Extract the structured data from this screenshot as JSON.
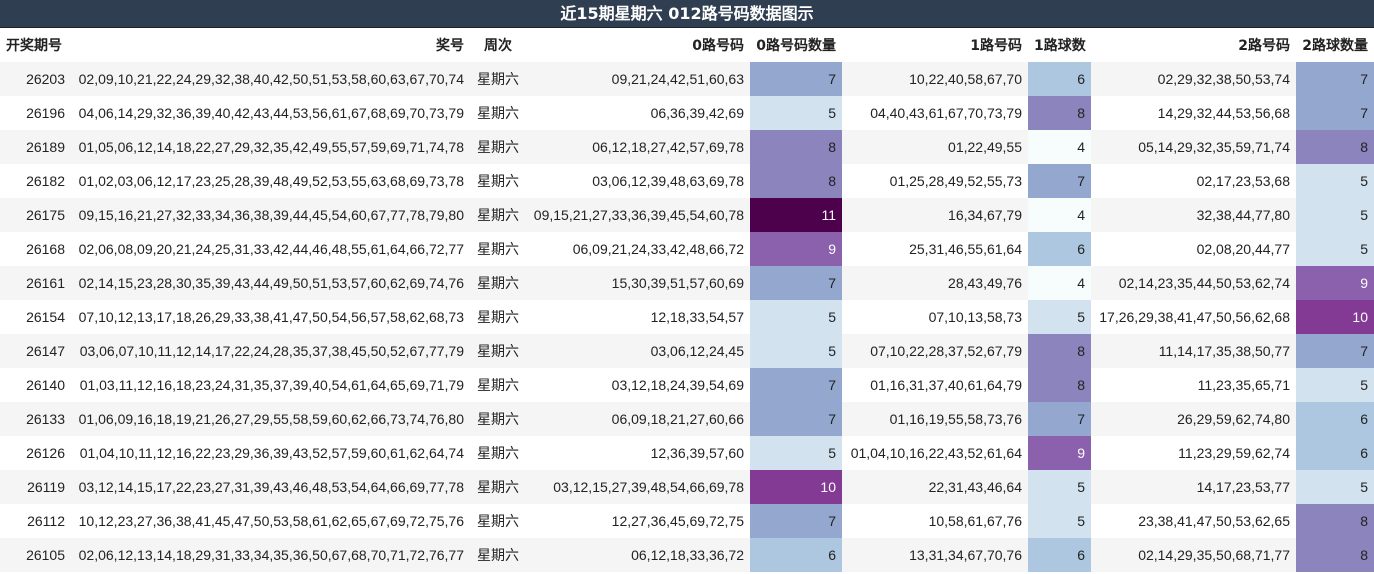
{
  "title": "近15期星期六 012路号码数据图示",
  "chart_data": {
    "type": "table",
    "title": "近15期星期六 012路号码数据图示",
    "columns": [
      "开奖期号",
      "奖号",
      "周次",
      "0路号码",
      "0路号码数量",
      "1路号码",
      "1路球数",
      "2路号码",
      "2路球数量"
    ],
    "color_scale": {
      "min": 4,
      "max": 11,
      "low_color": "#f7fcfd",
      "high_color": "#4d004b"
    },
    "rows": [
      {
        "issue": "26203",
        "numbers": "02,09,10,21,22,24,29,32,38,40,42,50,51,53,58,60,63,67,70,74",
        "weekday": "星期六",
        "r0": "09,21,24,42,51,60,63",
        "r0_count": 7,
        "r1": "10,22,40,58,67,70",
        "r1_count": 6,
        "r2": "02,29,32,38,50,53,74",
        "r2_count": 7
      },
      {
        "issue": "26196",
        "numbers": "04,06,14,29,32,36,39,40,42,43,44,53,56,61,67,68,69,70,73,79",
        "weekday": "星期六",
        "r0": "06,36,39,42,69",
        "r0_count": 5,
        "r1": "04,40,43,61,67,70,73,79",
        "r1_count": 8,
        "r2": "14,29,32,44,53,56,68",
        "r2_count": 7
      },
      {
        "issue": "26189",
        "numbers": "01,05,06,12,14,18,22,27,29,32,35,42,49,55,57,59,69,71,74,78",
        "weekday": "星期六",
        "r0": "06,12,18,27,42,57,69,78",
        "r0_count": 8,
        "r1": "01,22,49,55",
        "r1_count": 4,
        "r2": "05,14,29,32,35,59,71,74",
        "r2_count": 8
      },
      {
        "issue": "26182",
        "numbers": "01,02,03,06,12,17,23,25,28,39,48,49,52,53,55,63,68,69,73,78",
        "weekday": "星期六",
        "r0": "03,06,12,39,48,63,69,78",
        "r0_count": 8,
        "r1": "01,25,28,49,52,55,73",
        "r1_count": 7,
        "r2": "02,17,23,53,68",
        "r2_count": 5
      },
      {
        "issue": "26175",
        "numbers": "09,15,16,21,27,32,33,34,36,38,39,44,45,54,60,67,77,78,79,80",
        "weekday": "星期六",
        "r0": "09,15,21,27,33,36,39,45,54,60,78",
        "r0_count": 11,
        "r1": "16,34,67,79",
        "r1_count": 4,
        "r2": "32,38,44,77,80",
        "r2_count": 5
      },
      {
        "issue": "26168",
        "numbers": "02,06,08,09,20,21,24,25,31,33,42,44,46,48,55,61,64,66,72,77",
        "weekday": "星期六",
        "r0": "06,09,21,24,33,42,48,66,72",
        "r0_count": 9,
        "r1": "25,31,46,55,61,64",
        "r1_count": 6,
        "r2": "02,08,20,44,77",
        "r2_count": 5
      },
      {
        "issue": "26161",
        "numbers": "02,14,15,23,28,30,35,39,43,44,49,50,51,53,57,60,62,69,74,76",
        "weekday": "星期六",
        "r0": "15,30,39,51,57,60,69",
        "r0_count": 7,
        "r1": "28,43,49,76",
        "r1_count": 4,
        "r2": "02,14,23,35,44,50,53,62,74",
        "r2_count": 9
      },
      {
        "issue": "26154",
        "numbers": "07,10,12,13,17,18,26,29,33,38,41,47,50,54,56,57,58,62,68,73",
        "weekday": "星期六",
        "r0": "12,18,33,54,57",
        "r0_count": 5,
        "r1": "07,10,13,58,73",
        "r1_count": 5,
        "r2": "17,26,29,38,41,47,50,56,62,68",
        "r2_count": 10
      },
      {
        "issue": "26147",
        "numbers": "03,06,07,10,11,12,14,17,22,24,28,35,37,38,45,50,52,67,77,79",
        "weekday": "星期六",
        "r0": "03,06,12,24,45",
        "r0_count": 5,
        "r1": "07,10,22,28,37,52,67,79",
        "r1_count": 8,
        "r2": "11,14,17,35,38,50,77",
        "r2_count": 7
      },
      {
        "issue": "26140",
        "numbers": "01,03,11,12,16,18,23,24,31,35,37,39,40,54,61,64,65,69,71,79",
        "weekday": "星期六",
        "r0": "03,12,18,24,39,54,69",
        "r0_count": 7,
        "r1": "01,16,31,37,40,61,64,79",
        "r1_count": 8,
        "r2": "11,23,35,65,71",
        "r2_count": 5
      },
      {
        "issue": "26133",
        "numbers": "01,06,09,16,18,19,21,26,27,29,55,58,59,60,62,66,73,74,76,80",
        "weekday": "星期六",
        "r0": "06,09,18,21,27,60,66",
        "r0_count": 7,
        "r1": "01,16,19,55,58,73,76",
        "r1_count": 7,
        "r2": "26,29,59,62,74,80",
        "r2_count": 6
      },
      {
        "issue": "26126",
        "numbers": "01,04,10,11,12,16,22,23,29,36,39,43,52,57,59,60,61,62,64,74",
        "weekday": "星期六",
        "r0": "12,36,39,57,60",
        "r0_count": 5,
        "r1": "01,04,10,16,22,43,52,61,64",
        "r1_count": 9,
        "r2": "11,23,29,59,62,74",
        "r2_count": 6
      },
      {
        "issue": "26119",
        "numbers": "03,12,14,15,17,22,23,27,31,39,43,46,48,53,54,64,66,69,77,78",
        "weekday": "星期六",
        "r0": "03,12,15,27,39,48,54,66,69,78",
        "r0_count": 10,
        "r1": "22,31,43,46,64",
        "r1_count": 5,
        "r2": "14,17,23,53,77",
        "r2_count": 5
      },
      {
        "issue": "26112",
        "numbers": "10,12,23,27,36,38,41,45,47,50,53,58,61,62,65,67,69,72,75,76",
        "weekday": "星期六",
        "r0": "12,27,36,45,69,72,75",
        "r0_count": 7,
        "r1": "10,58,61,67,76",
        "r1_count": 5,
        "r2": "23,38,41,47,50,53,62,65",
        "r2_count": 8
      },
      {
        "issue": "26105",
        "numbers": "02,06,12,13,14,18,29,31,33,34,35,36,50,67,68,70,71,72,76,77",
        "weekday": "星期六",
        "r0": "06,12,18,33,36,72",
        "r0_count": 6,
        "r1": "13,31,34,67,70,76",
        "r1_count": 6,
        "r2": "02,14,29,35,50,68,71,77",
        "r2_count": 8
      }
    ]
  }
}
